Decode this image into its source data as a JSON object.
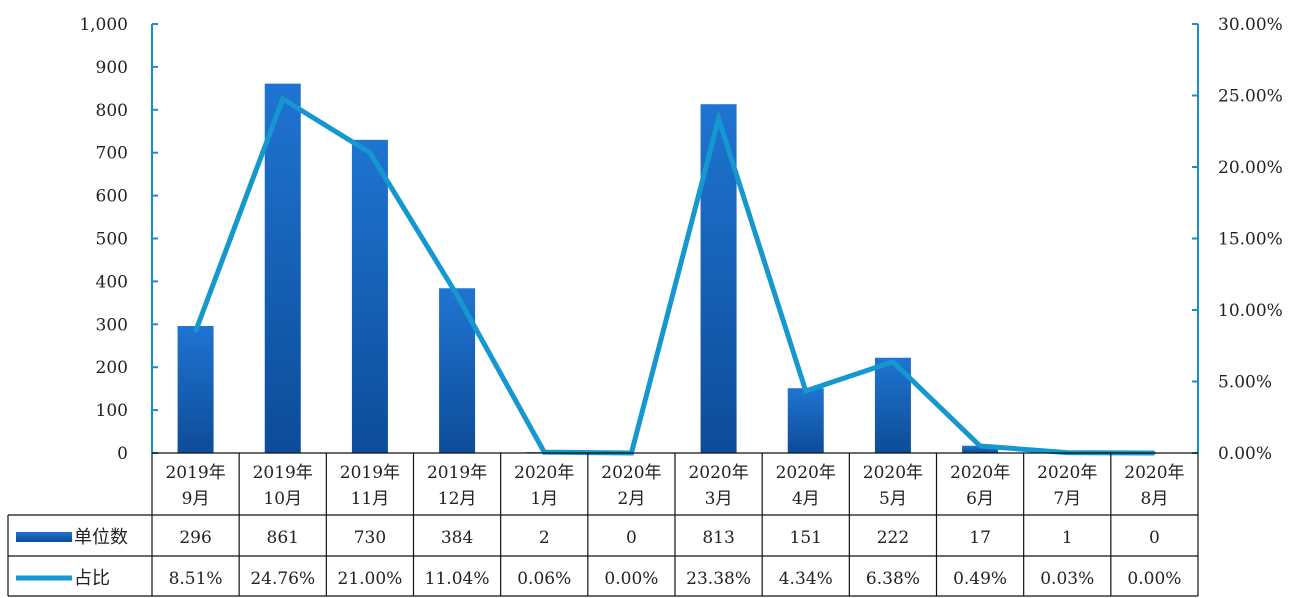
{
  "chart_data": {
    "type": "bar",
    "title": "",
    "categories": [
      [
        "2019年",
        "9月"
      ],
      [
        "2019年",
        "10月"
      ],
      [
        "2019年",
        "11月"
      ],
      [
        "2019年",
        "12月"
      ],
      [
        "2020年",
        "1月"
      ],
      [
        "2020年",
        "2月"
      ],
      [
        "2020年",
        "3月"
      ],
      [
        "2020年",
        "4月"
      ],
      [
        "2020年",
        "5月"
      ],
      [
        "2020年",
        "6月"
      ],
      [
        "2020年",
        "7月"
      ],
      [
        "2020年",
        "8月"
      ]
    ],
    "series": [
      {
        "name": "单位数",
        "kind": "bar",
        "axis": "left",
        "values": [
          296,
          861,
          730,
          384,
          2,
          0,
          813,
          151,
          222,
          17,
          1,
          0
        ],
        "labels": [
          "296",
          "861",
          "730",
          "384",
          "2",
          "0",
          "813",
          "151",
          "222",
          "17",
          "1",
          "0"
        ],
        "color": "#1565c0"
      },
      {
        "name": "占比",
        "kind": "line",
        "axis": "right",
        "values": [
          8.51,
          24.76,
          21.0,
          11.04,
          0.06,
          0.0,
          23.38,
          4.34,
          6.38,
          0.49,
          0.03,
          0.0
        ],
        "labels": [
          "8.51%",
          "24.76%",
          "21.00%",
          "11.04%",
          "0.06%",
          "0.00%",
          "23.38%",
          "4.34%",
          "6.38%",
          "0.49%",
          "0.03%",
          "0.00%"
        ],
        "color": "#1597d0"
      }
    ],
    "left_axis": {
      "ylim": [
        0,
        1000
      ],
      "ticks": [
        0,
        100,
        200,
        300,
        400,
        500,
        600,
        700,
        800,
        900,
        1000
      ],
      "tick_labels": [
        "0",
        "100",
        "200",
        "300",
        "400",
        "500",
        "600",
        "700",
        "800",
        "900",
        "1,000"
      ]
    },
    "right_axis": {
      "ylim": [
        0,
        30
      ],
      "ticks": [
        0,
        5,
        10,
        15,
        20,
        25,
        30
      ],
      "tick_labels": [
        "0.00%",
        "5.00%",
        "10.00%",
        "15.00%",
        "20.00%",
        "25.00%",
        "30.00%"
      ]
    },
    "legend": "data-table",
    "grid": false
  }
}
